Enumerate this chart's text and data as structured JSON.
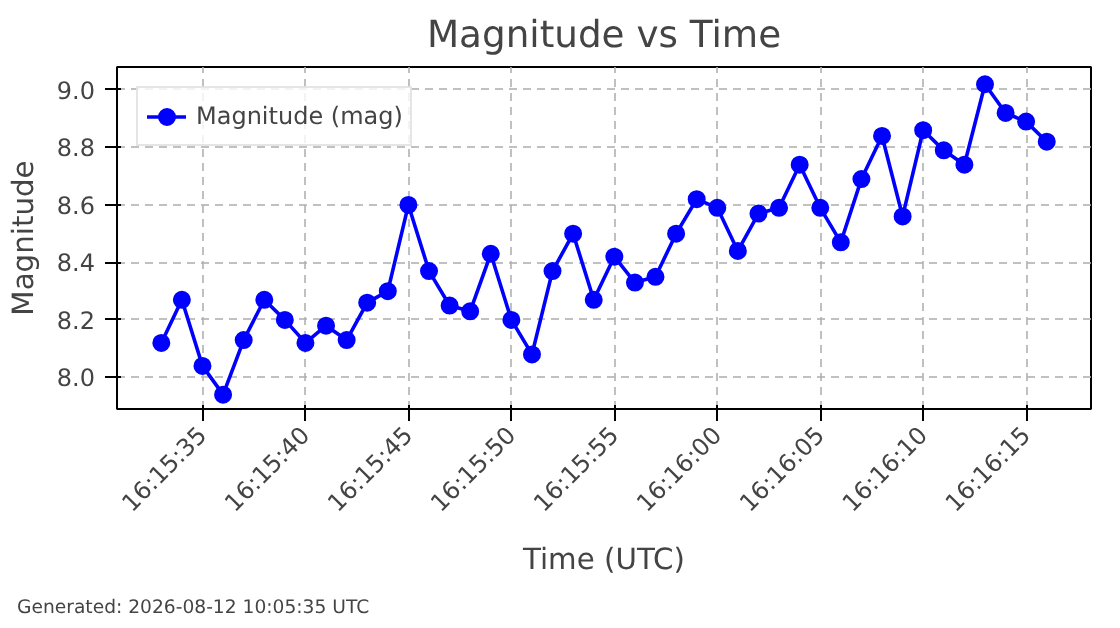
{
  "chart_data": {
    "type": "line",
    "title": "Magnitude vs Time",
    "xlabel": "Time (UTC)",
    "ylabel": "Magnitude",
    "annotations": [
      "Generated: 2026-08-12 10:05:35 UTC"
    ],
    "x": [
      16.259167,
      16.259444,
      16.259722,
      16.26,
      16.260278,
      16.260556,
      16.260833,
      16.261111,
      16.261389,
      16.261667,
      16.261944,
      16.262222,
      16.2625,
      16.262778,
      16.263056,
      16.263333,
      16.263611,
      16.263889,
      16.264167,
      16.264444,
      16.264722,
      16.265,
      16.265278,
      16.265556,
      16.265833,
      16.266111,
      16.266389,
      16.266667,
      16.266944,
      16.267222,
      16.2675,
      16.267778,
      16.268056,
      16.268333,
      16.268611,
      16.268889,
      16.269167,
      16.269444,
      16.269722,
      16.27,
      16.270278,
      16.270556,
      16.270833,
      16.271111
    ],
    "series": [
      {
        "name": "Magnitude (mag)",
        "color": "#0000ff",
        "values": [
          8.12,
          8.27,
          8.04,
          7.94,
          8.13,
          8.27,
          8.2,
          8.12,
          8.18,
          8.13,
          8.26,
          8.3,
          8.6,
          8.37,
          8.25,
          8.23,
          8.43,
          8.2,
          8.08,
          8.37,
          8.5,
          8.27,
          8.42,
          8.33,
          8.35,
          8.5,
          8.62,
          8.59,
          8.44,
          8.57,
          8.59,
          8.74,
          8.59,
          8.47,
          8.69,
          8.84,
          8.56,
          8.86,
          8.79,
          8.74,
          9.02,
          8.92,
          8.89,
          8.82
        ]
      }
    ],
    "xlim": [
      16.258569,
      16.271708
    ],
    "ylim": [
      7.89,
      9.08
    ],
    "xticks": [
      {
        "value": 16.259722,
        "label": "16:15:35"
      },
      {
        "value": 16.261111,
        "label": "16:15:40"
      },
      {
        "value": 16.2625,
        "label": "16:15:45"
      },
      {
        "value": 16.263889,
        "label": "16:15:50"
      },
      {
        "value": 16.265278,
        "label": "16:15:55"
      },
      {
        "value": 16.266667,
        "label": "16:16:00"
      },
      {
        "value": 16.268056,
        "label": "16:16:05"
      },
      {
        "value": 16.269444,
        "label": "16:16:10"
      },
      {
        "value": 16.270833,
        "label": "16:16:15"
      }
    ],
    "yticks": [
      {
        "value": 8.0,
        "label": "8.0"
      },
      {
        "value": 8.2,
        "label": "8.2"
      },
      {
        "value": 8.4,
        "label": "8.4"
      },
      {
        "value": 8.6,
        "label": "8.6"
      },
      {
        "value": 8.8,
        "label": "8.8"
      },
      {
        "value": 9.0,
        "label": "9.0"
      }
    ],
    "grid": true,
    "legend": "top left",
    "marker": "circle",
    "line_style": "solid"
  }
}
